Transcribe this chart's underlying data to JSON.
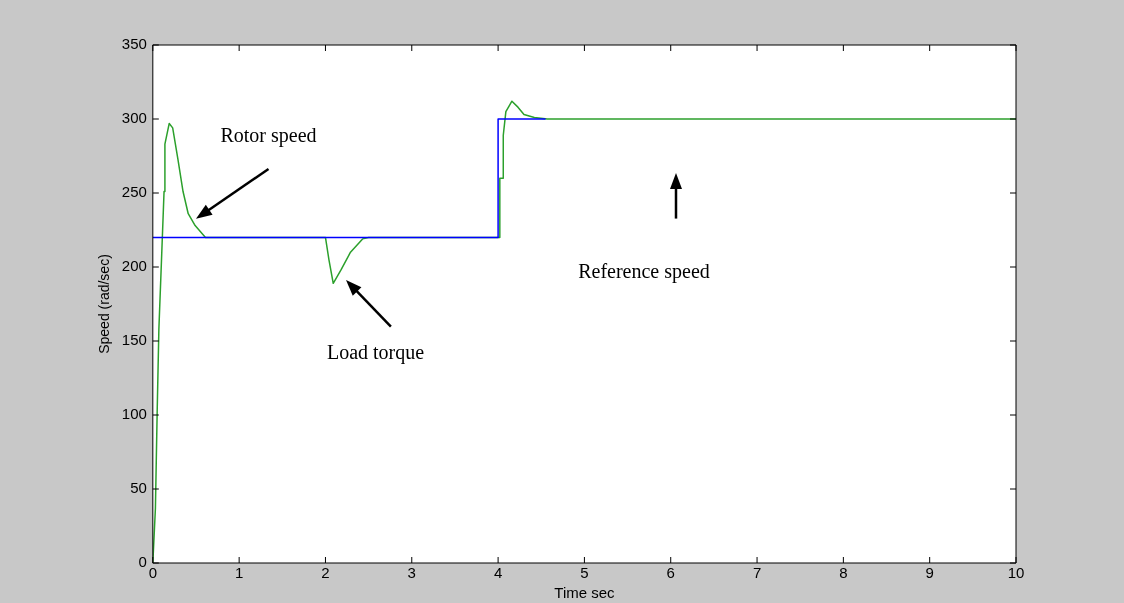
{
  "chart_data": {
    "type": "line",
    "xlabel": "Time sec",
    "ylabel": "Speed (rad/sec)",
    "xlim": [
      0,
      10
    ],
    "xticks": [
      0,
      1,
      2,
      3,
      4,
      5,
      6,
      7,
      8,
      9,
      10
    ],
    "ylim": [
      0,
      350
    ],
    "yticks": [
      0,
      50,
      100,
      150,
      200,
      250,
      300,
      350
    ],
    "grid": false,
    "legend": false,
    "series": [
      {
        "type": "step",
        "color": "#0000ff",
        "x": [
          0,
          4,
          4.55
        ],
        "values": [
          220,
          300,
          300
        ]
      },
      {
        "type": "line",
        "color": "#2ca02c",
        "x": [
          0,
          0.03,
          0.05,
          0.07,
          0.1,
          0.13,
          0.14,
          0.19,
          0.23,
          0.29,
          0.35,
          0.41,
          0.49,
          0.61,
          2.0,
          2.04,
          2.09,
          2.18,
          2.29,
          2.43,
          2.5,
          4.02,
          4.02,
          4.06,
          4.06,
          4.09,
          4.16,
          4.23,
          4.3,
          4.42,
          4.57,
          10
        ],
        "values": [
          0,
          37,
          101,
          158,
          204,
          251,
          283,
          297,
          294,
          273,
          251,
          236,
          228,
          220,
          220,
          205,
          189,
          198,
          210,
          219,
          220,
          220,
          260,
          260,
          289,
          305,
          312,
          308,
          303,
          301,
          300,
          300
        ]
      }
    ],
    "annotations": [
      "Rotor speed",
      "Load torque",
      "Reference speed"
    ]
  }
}
